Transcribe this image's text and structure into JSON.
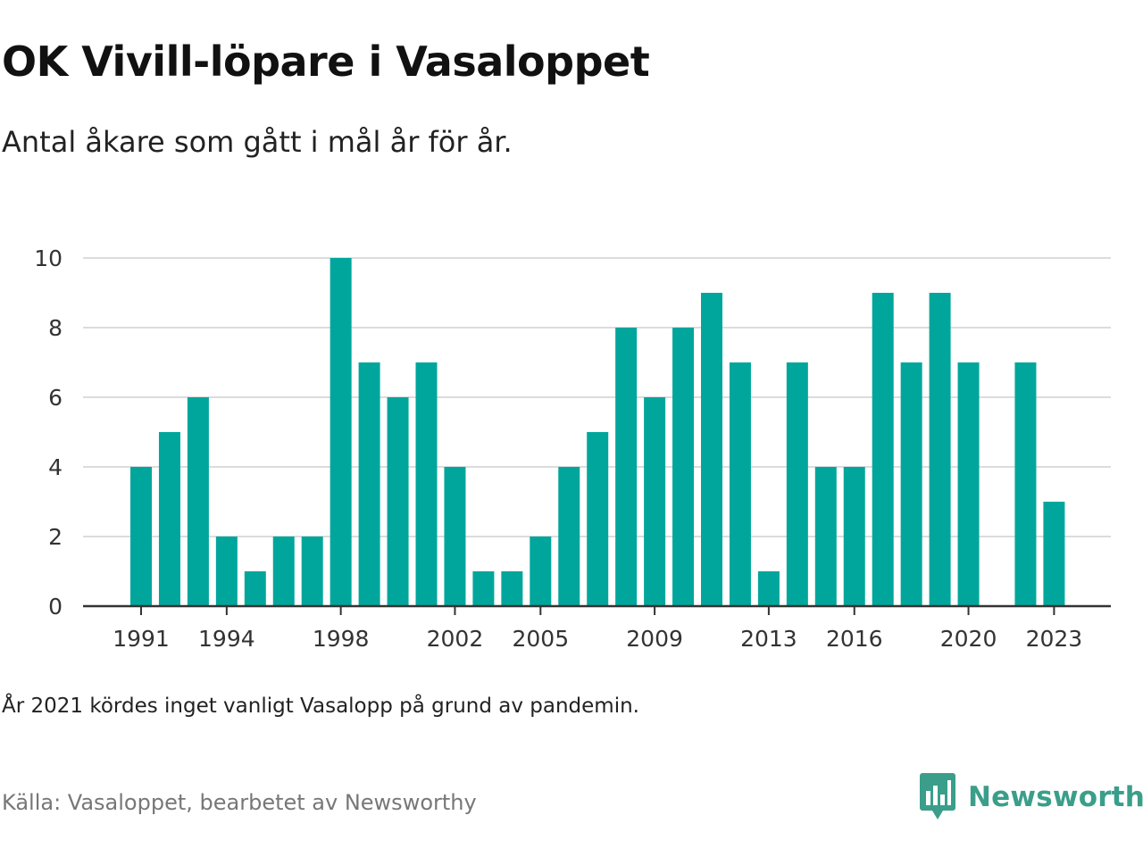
{
  "title": "OK Vivill-löpare i Vasaloppet",
  "subtitle": "Antal åkare som gått i mål år för år.",
  "note": "År 2021 kördes inget vanligt Vasalopp på grund av pandemin.",
  "source": "Källa: Vasaloppet, bearbetet av Newsworthy",
  "brand": {
    "name": "Newsworthy",
    "color": "#3a9e8a",
    "icon": "newsworthy-bar-chart-logo-icon"
  },
  "chart_data": {
    "type": "bar",
    "title": "OK Vivill-löpare i Vasaloppet",
    "subtitle": "Antal åkare som gått i mål år för år.",
    "xlabel": "",
    "ylabel": "",
    "bar_color": "#00a69c",
    "grid": true,
    "ylim": [
      0,
      10
    ],
    "yticks": [
      0,
      2,
      4,
      6,
      8,
      10
    ],
    "xticks": [
      1991,
      1994,
      1998,
      2002,
      2005,
      2009,
      2013,
      2016,
      2020,
      2023
    ],
    "categories": [
      1991,
      1992,
      1993,
      1994,
      1995,
      1996,
      1997,
      1998,
      1999,
      2000,
      2001,
      2002,
      2003,
      2004,
      2005,
      2006,
      2007,
      2008,
      2009,
      2010,
      2011,
      2012,
      2013,
      2014,
      2015,
      2016,
      2017,
      2018,
      2019,
      2020,
      2021,
      2022,
      2023
    ],
    "values": [
      4,
      5,
      6,
      2,
      1,
      2,
      2,
      10,
      7,
      6,
      7,
      4,
      1,
      1,
      2,
      4,
      5,
      8,
      6,
      8,
      9,
      7,
      1,
      7,
      4,
      4,
      9,
      7,
      9,
      7,
      null,
      7,
      3
    ]
  }
}
